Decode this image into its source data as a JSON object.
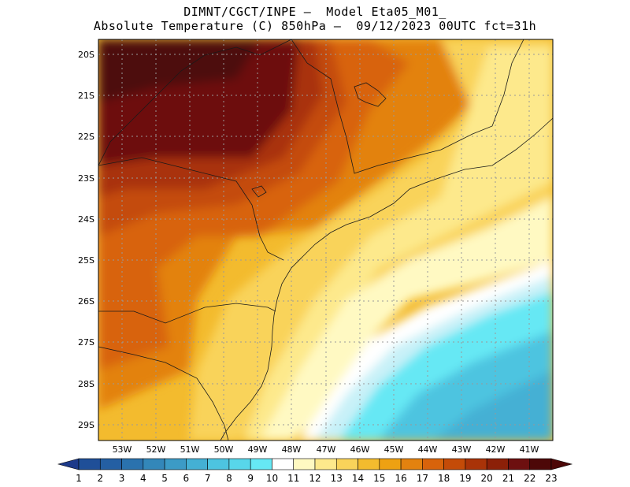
{
  "header": {
    "line1": "DIMNT/CGCT/INPE –  Model Eta05_M01_",
    "line2": "Absolute Temperature (C) 850hPa –  09/12/2023 00UTC fct=31h"
  },
  "map": {
    "lat_labels": [
      "20S",
      "21S",
      "22S",
      "23S",
      "24S",
      "25S",
      "26S",
      "27S",
      "28S",
      "29S"
    ],
    "lon_labels": [
      "53W",
      "52W",
      "51W",
      "50W",
      "49W",
      "48W",
      "47W",
      "46W",
      "45W",
      "44W",
      "43W",
      "42W",
      "41W"
    ]
  },
  "colorbar": {
    "labels": [
      "1",
      "2",
      "3",
      "4",
      "5",
      "6",
      "7",
      "8",
      "9",
      "10",
      "11",
      "12",
      "13",
      "14",
      "15",
      "16",
      "17",
      "18",
      "19",
      "20",
      "21",
      "22",
      "23"
    ],
    "colors": [
      "#1d3a8a",
      "#1f4f98",
      "#245fa3",
      "#2a72ae",
      "#3387b9",
      "#3c9bc6",
      "#44b0d4",
      "#4dc4e0",
      "#58d6ea",
      "#66e8f4",
      "#ffffff",
      "#fff9c2",
      "#fde98c",
      "#f9d35a",
      "#f3bb2e",
      "#eea112",
      "#e3820f",
      "#d8630b",
      "#c44b08",
      "#a93308",
      "#8c2008",
      "#6d1010",
      "#4d0808"
    ]
  }
}
